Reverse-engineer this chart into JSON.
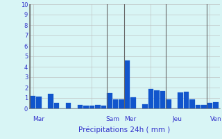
{
  "values": [
    1.2,
    1.15,
    0.0,
    1.4,
    0.55,
    0.0,
    0.55,
    0.0,
    0.35,
    0.3,
    0.3,
    0.35,
    0.3,
    1.45,
    0.85,
    0.85,
    4.6,
    1.1,
    0.0,
    0.4,
    1.85,
    1.75,
    1.65,
    0.9,
    0.0,
    1.55,
    1.6,
    0.9,
    0.35,
    0.35,
    0.55,
    0.6
  ],
  "day_labels": [
    "Mar",
    "Sam",
    "Mer",
    "Jeu",
    "Ven"
  ],
  "day_x_positions": [
    1,
    13.5,
    16.5,
    24.5,
    31
  ],
  "day_line_x": [
    0,
    13,
    16,
    23,
    30
  ],
  "xlabel": "Précipitations 24h ( mm )",
  "ylim": [
    0,
    10
  ],
  "yticks": [
    0,
    1,
    2,
    3,
    4,
    5,
    6,
    7,
    8,
    9,
    10
  ],
  "bar_color": "#1155cc",
  "bar_edge_color": "#1155cc",
  "background_color": "#d8f5f5",
  "grid_color": "#bbbbbb",
  "text_color": "#3333cc",
  "sep_line_color": "#666666"
}
